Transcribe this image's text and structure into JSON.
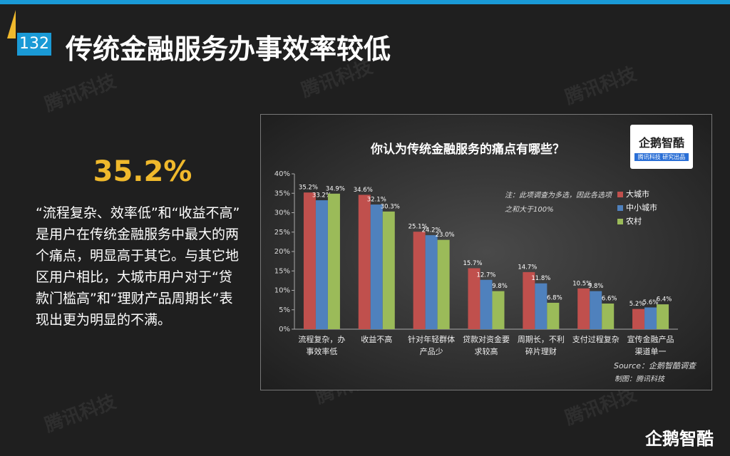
{
  "page_number": "132",
  "title": "传统金融服务办事效率较低",
  "highlight": "35.2%",
  "description": "“流程复杂、效率低”和“收益不高” 是用户在传统金融服务中最大的两个痛点，明显高于其它。与其它地区用户相比，大城市用户对于“贷款门槛高”和“理财产品周期长”表现出更为明显的不满。",
  "watermark": "腾讯科技",
  "footer_logo": "企鹅智酷",
  "chart_logo": {
    "name": "企鹅智酷",
    "subtitle": "腾讯科技 研究出品"
  },
  "chart_data": {
    "type": "bar",
    "title": "你认为传统金融服务的痛点有哪些？",
    "categories": [
      "流程复杂，办事效率低",
      "收益不高",
      "针对年轻群体产品少",
      "贷款对资金要求较高",
      "周期长，不利碎片理财",
      "支付过程复杂",
      "宣传金融产品渠道单一"
    ],
    "series": [
      {
        "name": "大城市",
        "color": "#c0504d",
        "values": [
          35.2,
          34.6,
          25.1,
          15.7,
          14.7,
          10.5,
          5.2
        ],
        "value_labels": [
          "35.2%",
          "34.6%",
          "25.1%",
          "15.7%",
          "14.7%",
          "10.5%",
          "5.2%"
        ]
      },
      {
        "name": "中小城市",
        "color": "#4f81bd",
        "values": [
          33.2,
          32.1,
          24.2,
          12.7,
          11.8,
          9.8,
          5.6
        ],
        "value_labels": [
          "33.2%",
          "32.1%",
          "24.2%",
          "12.7%",
          "11.8%",
          "9.8%",
          "5.6%"
        ]
      },
      {
        "name": "农村",
        "color": "#9bbb59",
        "values": [
          34.9,
          30.3,
          23.0,
          9.8,
          6.8,
          6.6,
          6.4
        ],
        "value_labels": [
          "34.9%",
          "30.3%",
          "23.0%",
          "9.8%",
          "6.8%",
          "6.6%",
          "6.4%"
        ]
      }
    ],
    "ylim": [
      0,
      40
    ],
    "yticks": [
      {
        "value": 0,
        "label": "0%"
      },
      {
        "value": 5,
        "label": "5%"
      },
      {
        "value": 10,
        "label": "10%"
      },
      {
        "value": 15,
        "label": "15%"
      },
      {
        "value": 20,
        "label": "20%"
      },
      {
        "value": 25,
        "label": "25%"
      },
      {
        "value": 30,
        "label": "30%"
      },
      {
        "value": 35,
        "label": "35%"
      },
      {
        "value": 40,
        "label": "40%"
      }
    ],
    "note": "注：此项调查为多选，因此各选项之和大于100%",
    "source": "Source：企鹅智酷调查",
    "credit": "制图：腾讯科技",
    "legend": "right"
  }
}
